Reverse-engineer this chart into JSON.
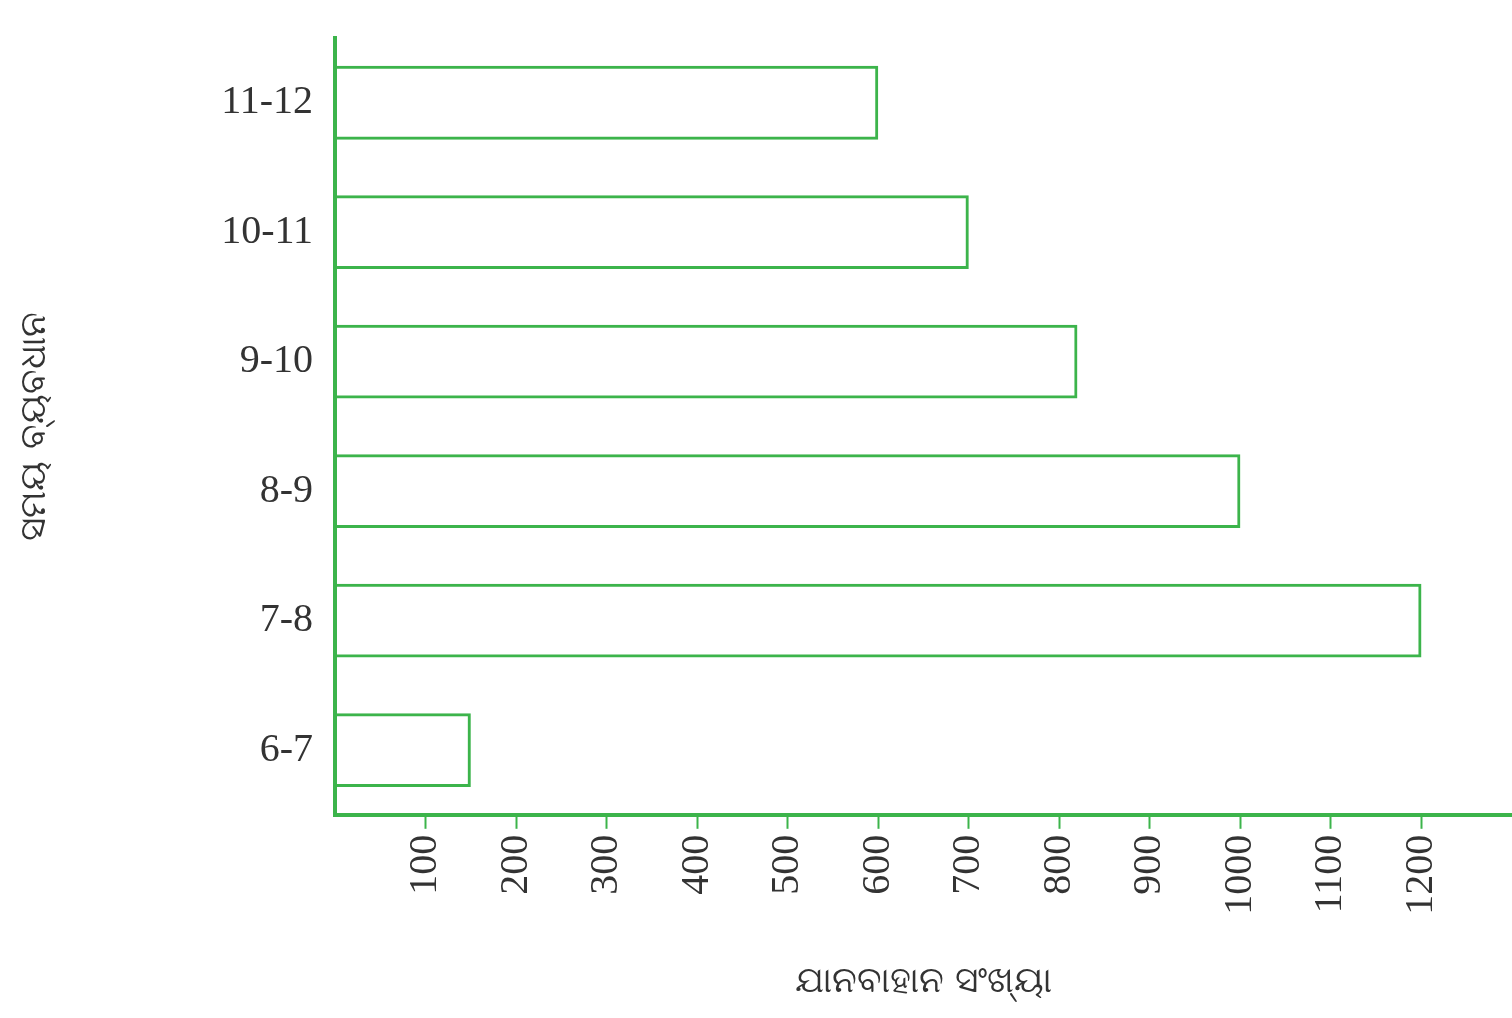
{
  "chart_data": {
    "type": "bar",
    "orientation": "horizontal",
    "xlabel": "ଯାନବାହାନ ସଂଖ୍ୟା",
    "ylabel": "ସମୟ ବ୍ୟବଧାନ",
    "categories": [
      "11-12",
      "10-11",
      "9-10",
      "8-9",
      "7-8",
      "6-7"
    ],
    "series": [
      {
        "color": "#3cb44b",
        "values": [
          600,
          700,
          820,
          1000,
          1200,
          150
        ]
      }
    ],
    "xlim": [
      0,
      1300
    ],
    "xticks": [
      100,
      200,
      300,
      400,
      500,
      600,
      700,
      800,
      900,
      1000,
      1100,
      1200
    ],
    "grid": false,
    "legend": false
  }
}
